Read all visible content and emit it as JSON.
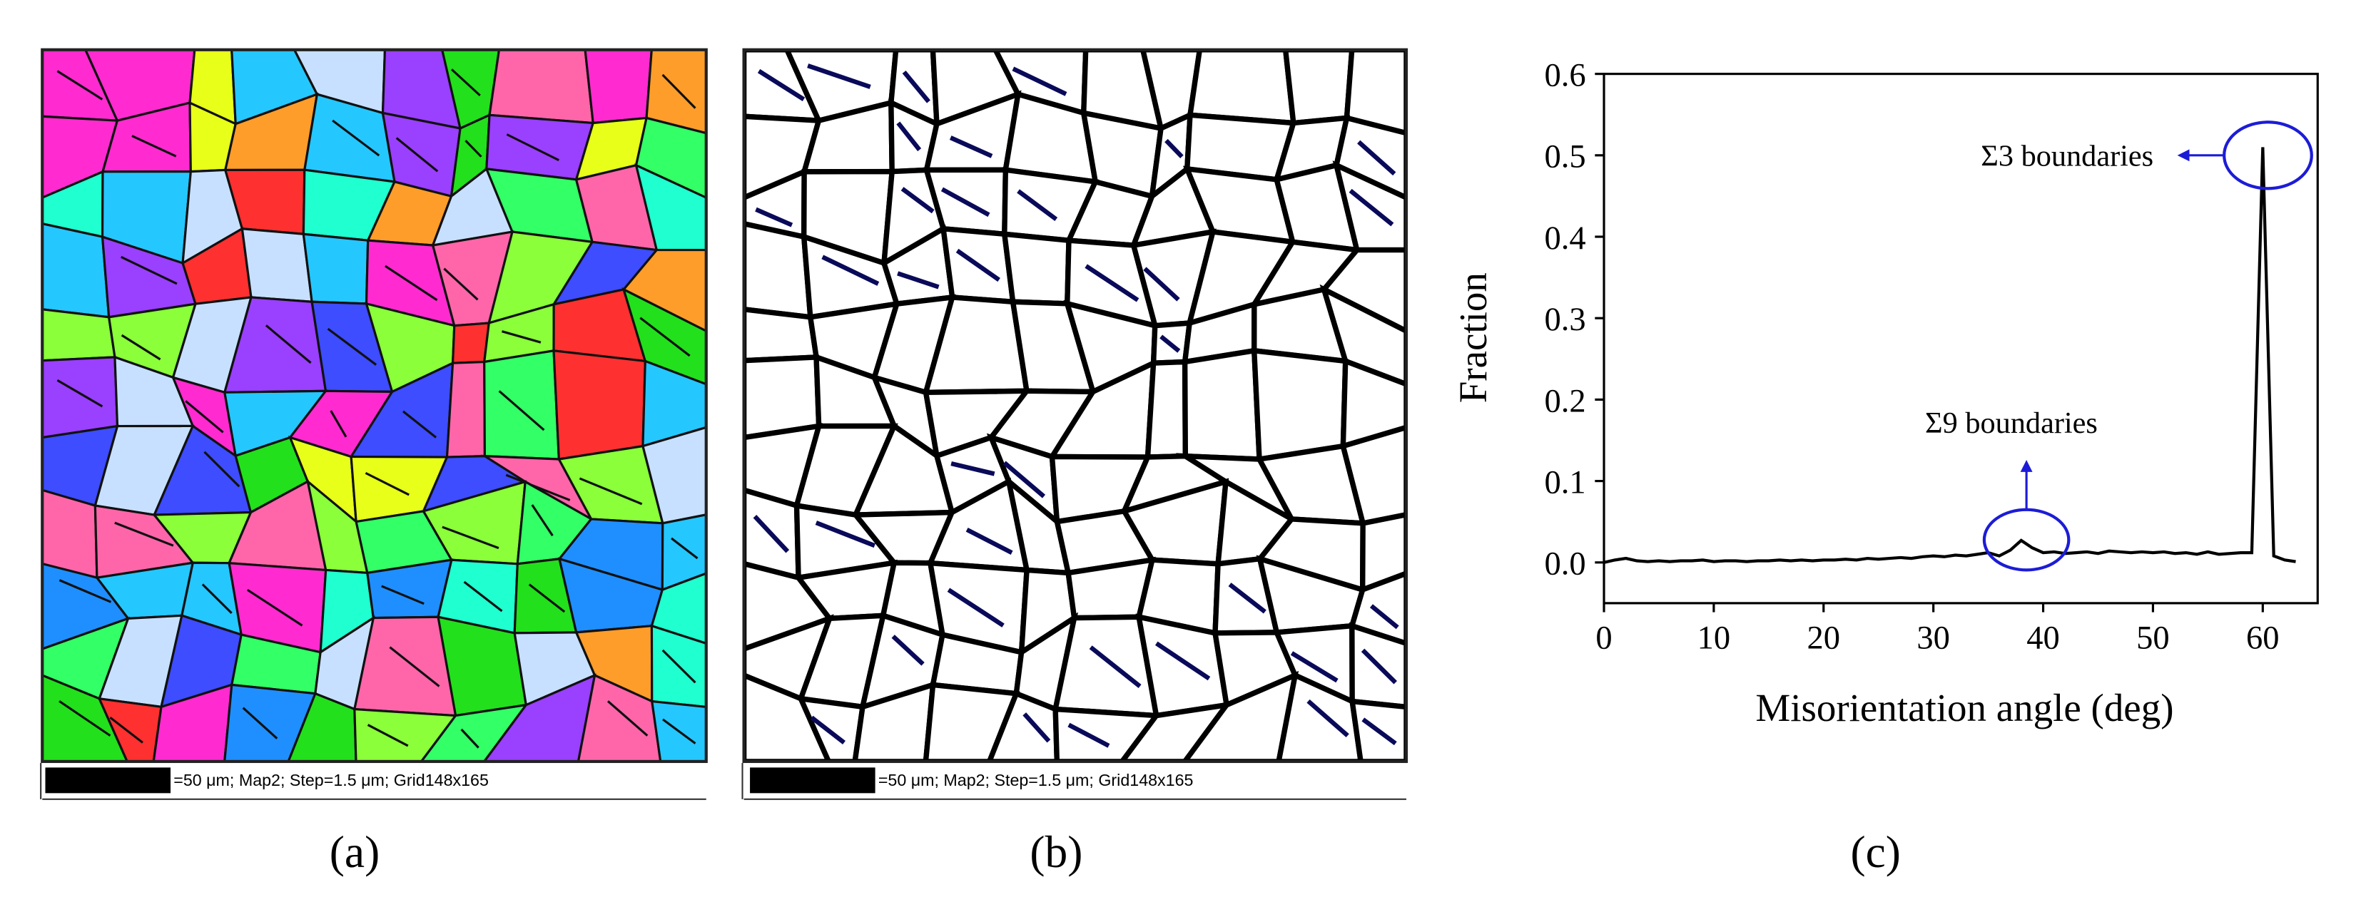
{
  "panels": [
    {
      "label": "(a)",
      "scale_text": "=50 μm; Map2; Step=1.5 μm; Grid148x165"
    },
    {
      "label": "(b)",
      "scale_text": "=50 μm; Map2; Step=1.5 μm; Grid148x165"
    }
  ],
  "chart_label": "(c)",
  "chart_data": {
    "type": "line",
    "x_label": "Misorientation angle (deg)",
    "y_label": "Fraction",
    "annotations": [
      "Σ3 boundaries",
      "Σ9 boundaries"
    ],
    "x": [
      0,
      1,
      2,
      3,
      4,
      5,
      6,
      7,
      8,
      9,
      10,
      11,
      12,
      13,
      14,
      15,
      16,
      17,
      18,
      19,
      20,
      21,
      22,
      23,
      24,
      25,
      26,
      27,
      28,
      29,
      30,
      31,
      32,
      33,
      34,
      35,
      36,
      37,
      38,
      39,
      40,
      41,
      42,
      43,
      44,
      45,
      46,
      47,
      48,
      49,
      50,
      51,
      52,
      53,
      54,
      55,
      56,
      57,
      58,
      59,
      60,
      61,
      62,
      63
    ],
    "values": [
      0.0,
      0.003,
      0.005,
      0.002,
      0.001,
      0.002,
      0.001,
      0.002,
      0.002,
      0.003,
      0.001,
      0.002,
      0.002,
      0.001,
      0.002,
      0.002,
      0.003,
      0.002,
      0.003,
      0.002,
      0.003,
      0.003,
      0.004,
      0.003,
      0.005,
      0.004,
      0.005,
      0.006,
      0.005,
      0.007,
      0.008,
      0.007,
      0.009,
      0.008,
      0.01,
      0.012,
      0.008,
      0.015,
      0.027,
      0.018,
      0.012,
      0.013,
      0.011,
      0.012,
      0.013,
      0.011,
      0.014,
      0.013,
      0.012,
      0.013,
      0.012,
      0.013,
      0.011,
      0.012,
      0.01,
      0.013,
      0.01,
      0.011,
      0.012,
      0.012,
      0.51,
      0.008,
      0.003,
      0.001
    ],
    "color": "#000000",
    "annotation_color": "#1c1cd6",
    "xlim": [
      0,
      65
    ],
    "ylim": [
      -0.05,
      0.6
    ],
    "xticks": [
      0,
      10,
      20,
      30,
      40,
      50,
      60
    ],
    "yticks": [
      {
        "value": 0,
        "label": "0.0"
      },
      0.1,
      0.2,
      0.3,
      0.4,
      0.5,
      0.6
    ]
  }
}
